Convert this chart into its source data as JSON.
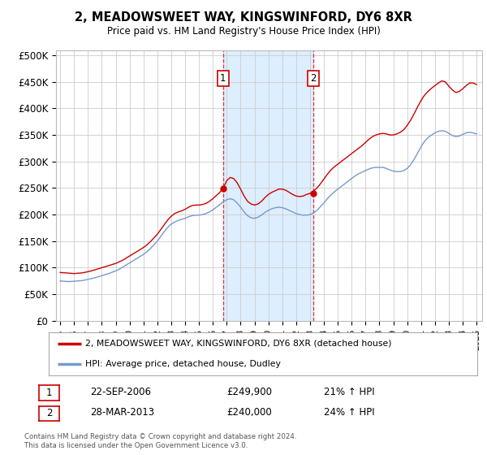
{
  "title": "2, MEADOWSWEET WAY, KINGSWINFORD, DY6 8XR",
  "subtitle": "Price paid vs. HM Land Registry's House Price Index (HPI)",
  "yticks": [
    0,
    50000,
    100000,
    150000,
    200000,
    250000,
    300000,
    350000,
    400000,
    450000,
    500000
  ],
  "ylim": [
    0,
    510000
  ],
  "xlim_start": 1994.7,
  "xlim_end": 2025.4,
  "sale1_date": 2006.73,
  "sale1_price": 249900,
  "sale1_label": "1",
  "sale1_text": "22-SEP-2006",
  "sale1_price_str": "£249,900",
  "sale1_pct": "21% ↑ HPI",
  "sale2_date": 2013.24,
  "sale2_price": 240000,
  "sale2_label": "2",
  "sale2_text": "28-MAR-2013",
  "sale2_price_str": "£240,000",
  "sale2_pct": "24% ↑ HPI",
  "legend_line1": "2, MEADOWSWEET WAY, KINGSWINFORD, DY6 8XR (detached house)",
  "legend_line2": "HPI: Average price, detached house, Dudley",
  "footer": "Contains HM Land Registry data © Crown copyright and database right 2024.\nThis data is licensed under the Open Government Licence v3.0.",
  "background_color": "#ffffff",
  "plot_bg": "#ffffff",
  "grid_color": "#cccccc",
  "shade_color": "#ddeeff",
  "red_line_color": "#cc0000",
  "blue_line_color": "#7799cc",
  "sale_marker_color": "#cc0000",
  "dashed_line_color": "#dd3333",
  "annotation_box_color": "#cc0000",
  "hpi_red_points": [
    [
      1995.0,
      91000
    ],
    [
      1995.25,
      90500
    ],
    [
      1995.5,
      90000
    ],
    [
      1995.75,
      89500
    ],
    [
      1996.0,
      89000
    ],
    [
      1996.25,
      89500
    ],
    [
      1996.5,
      90000
    ],
    [
      1996.75,
      91000
    ],
    [
      1997.0,
      92500
    ],
    [
      1997.25,
      94000
    ],
    [
      1997.5,
      96000
    ],
    [
      1997.75,
      98000
    ],
    [
      1998.0,
      100000
    ],
    [
      1998.25,
      102000
    ],
    [
      1998.5,
      104000
    ],
    [
      1998.75,
      106000
    ],
    [
      1999.0,
      108000
    ],
    [
      1999.25,
      111000
    ],
    [
      1999.5,
      114000
    ],
    [
      1999.75,
      118000
    ],
    [
      2000.0,
      122000
    ],
    [
      2000.25,
      126000
    ],
    [
      2000.5,
      130000
    ],
    [
      2000.75,
      134000
    ],
    [
      2001.0,
      138000
    ],
    [
      2001.25,
      143000
    ],
    [
      2001.5,
      149000
    ],
    [
      2001.75,
      156000
    ],
    [
      2002.0,
      163000
    ],
    [
      2002.25,
      172000
    ],
    [
      2002.5,
      181000
    ],
    [
      2002.75,
      190000
    ],
    [
      2003.0,
      197000
    ],
    [
      2003.25,
      202000
    ],
    [
      2003.5,
      205000
    ],
    [
      2003.75,
      207000
    ],
    [
      2004.0,
      210000
    ],
    [
      2004.25,
      214000
    ],
    [
      2004.5,
      217000
    ],
    [
      2004.75,
      218000
    ],
    [
      2005.0,
      218000
    ],
    [
      2005.25,
      219000
    ],
    [
      2005.5,
      221000
    ],
    [
      2005.75,
      225000
    ],
    [
      2006.0,
      230000
    ],
    [
      2006.25,
      236000
    ],
    [
      2006.5,
      242000
    ],
    [
      2006.75,
      249900
    ],
    [
      2007.0,
      264000
    ],
    [
      2007.25,
      270000
    ],
    [
      2007.5,
      268000
    ],
    [
      2007.75,
      260000
    ],
    [
      2008.0,
      248000
    ],
    [
      2008.25,
      235000
    ],
    [
      2008.5,
      225000
    ],
    [
      2008.75,
      220000
    ],
    [
      2009.0,
      218000
    ],
    [
      2009.25,
      220000
    ],
    [
      2009.5,
      225000
    ],
    [
      2009.75,
      232000
    ],
    [
      2010.0,
      238000
    ],
    [
      2010.25,
      242000
    ],
    [
      2010.5,
      245000
    ],
    [
      2010.75,
      248000
    ],
    [
      2011.0,
      248000
    ],
    [
      2011.25,
      246000
    ],
    [
      2011.5,
      242000
    ],
    [
      2011.75,
      238000
    ],
    [
      2012.0,
      235000
    ],
    [
      2012.25,
      234000
    ],
    [
      2012.5,
      235000
    ],
    [
      2012.75,
      238000
    ],
    [
      2013.0,
      240000
    ],
    [
      2013.25,
      244000
    ],
    [
      2013.5,
      250000
    ],
    [
      2013.75,
      258000
    ],
    [
      2014.0,
      267000
    ],
    [
      2014.25,
      276000
    ],
    [
      2014.5,
      284000
    ],
    [
      2014.75,
      290000
    ],
    [
      2015.0,
      295000
    ],
    [
      2015.25,
      300000
    ],
    [
      2015.5,
      305000
    ],
    [
      2015.75,
      310000
    ],
    [
      2016.0,
      315000
    ],
    [
      2016.25,
      320000
    ],
    [
      2016.5,
      325000
    ],
    [
      2016.75,
      330000
    ],
    [
      2017.0,
      336000
    ],
    [
      2017.25,
      342000
    ],
    [
      2017.5,
      347000
    ],
    [
      2017.75,
      350000
    ],
    [
      2018.0,
      352000
    ],
    [
      2018.25,
      353000
    ],
    [
      2018.5,
      352000
    ],
    [
      2018.75,
      350000
    ],
    [
      2019.0,
      350000
    ],
    [
      2019.25,
      352000
    ],
    [
      2019.5,
      355000
    ],
    [
      2019.75,
      360000
    ],
    [
      2020.0,
      368000
    ],
    [
      2020.25,
      378000
    ],
    [
      2020.5,
      390000
    ],
    [
      2020.75,
      403000
    ],
    [
      2021.0,
      415000
    ],
    [
      2021.25,
      425000
    ],
    [
      2021.5,
      432000
    ],
    [
      2021.75,
      438000
    ],
    [
      2022.0,
      443000
    ],
    [
      2022.25,
      448000
    ],
    [
      2022.5,
      452000
    ],
    [
      2022.75,
      450000
    ],
    [
      2023.0,
      442000
    ],
    [
      2023.25,
      435000
    ],
    [
      2023.5,
      430000
    ],
    [
      2023.75,
      432000
    ],
    [
      2024.0,
      437000
    ],
    [
      2024.25,
      443000
    ],
    [
      2024.5,
      448000
    ],
    [
      2024.75,
      448000
    ],
    [
      2025.0,
      445000
    ]
  ],
  "hpi_blue_points": [
    [
      1995.0,
      75000
    ],
    [
      1995.25,
      74500
    ],
    [
      1995.5,
      74000
    ],
    [
      1995.75,
      74000
    ],
    [
      1996.0,
      74500
    ],
    [
      1996.25,
      75000
    ],
    [
      1996.5,
      75500
    ],
    [
      1996.75,
      76500
    ],
    [
      1997.0,
      78000
    ],
    [
      1997.25,
      79500
    ],
    [
      1997.5,
      81000
    ],
    [
      1997.75,
      83000
    ],
    [
      1998.0,
      85000
    ],
    [
      1998.25,
      87000
    ],
    [
      1998.5,
      89000
    ],
    [
      1998.75,
      91500
    ],
    [
      1999.0,
      94000
    ],
    [
      1999.25,
      97000
    ],
    [
      1999.5,
      101000
    ],
    [
      1999.75,
      105000
    ],
    [
      2000.0,
      109000
    ],
    [
      2000.25,
      113000
    ],
    [
      2000.5,
      117000
    ],
    [
      2000.75,
      121000
    ],
    [
      2001.0,
      125000
    ],
    [
      2001.25,
      130000
    ],
    [
      2001.5,
      136000
    ],
    [
      2001.75,
      143000
    ],
    [
      2002.0,
      150000
    ],
    [
      2002.25,
      159000
    ],
    [
      2002.5,
      168000
    ],
    [
      2002.75,
      176000
    ],
    [
      2003.0,
      182000
    ],
    [
      2003.25,
      186000
    ],
    [
      2003.5,
      189000
    ],
    [
      2003.75,
      191000
    ],
    [
      2004.0,
      193000
    ],
    [
      2004.25,
      196000
    ],
    [
      2004.5,
      198000
    ],
    [
      2004.75,
      199000
    ],
    [
      2005.0,
      199000
    ],
    [
      2005.25,
      200000
    ],
    [
      2005.5,
      202000
    ],
    [
      2005.75,
      205000
    ],
    [
      2006.0,
      209000
    ],
    [
      2006.25,
      214000
    ],
    [
      2006.5,
      219000
    ],
    [
      2006.75,
      224000
    ],
    [
      2007.0,
      228000
    ],
    [
      2007.25,
      230000
    ],
    [
      2007.5,
      228000
    ],
    [
      2007.75,
      222000
    ],
    [
      2008.0,
      214000
    ],
    [
      2008.25,
      205000
    ],
    [
      2008.5,
      198000
    ],
    [
      2008.75,
      194000
    ],
    [
      2009.0,
      193000
    ],
    [
      2009.25,
      195000
    ],
    [
      2009.5,
      199000
    ],
    [
      2009.75,
      204000
    ],
    [
      2010.0,
      208000
    ],
    [
      2010.25,
      211000
    ],
    [
      2010.5,
      213000
    ],
    [
      2010.75,
      214000
    ],
    [
      2011.0,
      213000
    ],
    [
      2011.25,
      211000
    ],
    [
      2011.5,
      208000
    ],
    [
      2011.75,
      205000
    ],
    [
      2012.0,
      202000
    ],
    [
      2012.25,
      200000
    ],
    [
      2012.5,
      199000
    ],
    [
      2012.75,
      199000
    ],
    [
      2013.0,
      200000
    ],
    [
      2013.25,
      203000
    ],
    [
      2013.5,
      208000
    ],
    [
      2013.75,
      215000
    ],
    [
      2014.0,
      222000
    ],
    [
      2014.25,
      230000
    ],
    [
      2014.5,
      237000
    ],
    [
      2014.75,
      243000
    ],
    [
      2015.0,
      248000
    ],
    [
      2015.25,
      253000
    ],
    [
      2015.5,
      258000
    ],
    [
      2015.75,
      263000
    ],
    [
      2016.0,
      268000
    ],
    [
      2016.25,
      273000
    ],
    [
      2016.5,
      277000
    ],
    [
      2016.75,
      280000
    ],
    [
      2017.0,
      283000
    ],
    [
      2017.25,
      286000
    ],
    [
      2017.5,
      288000
    ],
    [
      2017.75,
      289000
    ],
    [
      2018.0,
      289000
    ],
    [
      2018.25,
      289000
    ],
    [
      2018.5,
      287000
    ],
    [
      2018.75,
      284000
    ],
    [
      2019.0,
      282000
    ],
    [
      2019.25,
      281000
    ],
    [
      2019.5,
      281000
    ],
    [
      2019.75,
      283000
    ],
    [
      2020.0,
      287000
    ],
    [
      2020.25,
      294000
    ],
    [
      2020.5,
      304000
    ],
    [
      2020.75,
      316000
    ],
    [
      2021.0,
      328000
    ],
    [
      2021.25,
      338000
    ],
    [
      2021.5,
      345000
    ],
    [
      2021.75,
      350000
    ],
    [
      2022.0,
      354000
    ],
    [
      2022.25,
      357000
    ],
    [
      2022.5,
      358000
    ],
    [
      2022.75,
      357000
    ],
    [
      2023.0,
      353000
    ],
    [
      2023.25,
      349000
    ],
    [
      2023.5,
      347000
    ],
    [
      2023.75,
      348000
    ],
    [
      2024.0,
      351000
    ],
    [
      2024.25,
      354000
    ],
    [
      2024.5,
      355000
    ],
    [
      2024.75,
      354000
    ],
    [
      2025.0,
      352000
    ]
  ]
}
